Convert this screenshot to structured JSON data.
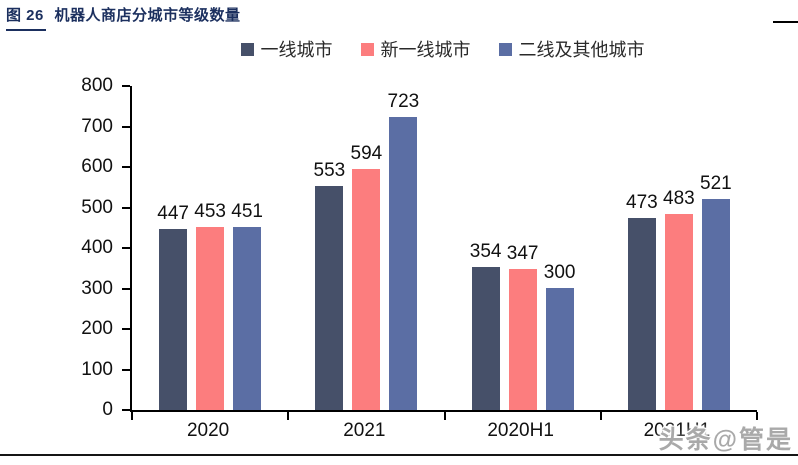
{
  "page": {
    "title_prefix": "图 26",
    "title_text": "机器人商店分城市等级数量"
  },
  "watermark": "头条@管是",
  "colors": {
    "title_navy": "#1b2f5e",
    "axis_black": "#000000",
    "label_black": "#111111"
  },
  "chart_data": {
    "type": "bar",
    "title": "机器人商店分城市等级数量",
    "categories": [
      "2020",
      "2021",
      "2020H1",
      "2021H1"
    ],
    "series": [
      {
        "name": "一线城市",
        "color": "#465069",
        "values": [
          447,
          553,
          354,
          473
        ]
      },
      {
        "name": "新一线城市",
        "color": "#fc7d7e",
        "values": [
          453,
          594,
          347,
          483
        ]
      },
      {
        "name": "二线及其他城市",
        "color": "#5b6ea4",
        "values": [
          451,
          723,
          300,
          521
        ]
      }
    ],
    "xlabel": "",
    "ylabel": "",
    "ylim": [
      0,
      800
    ],
    "yticks": [
      0,
      100,
      200,
      300,
      400,
      500,
      600,
      700,
      800
    ],
    "grid": false,
    "legend_position": "top-center",
    "value_labels": true
  }
}
